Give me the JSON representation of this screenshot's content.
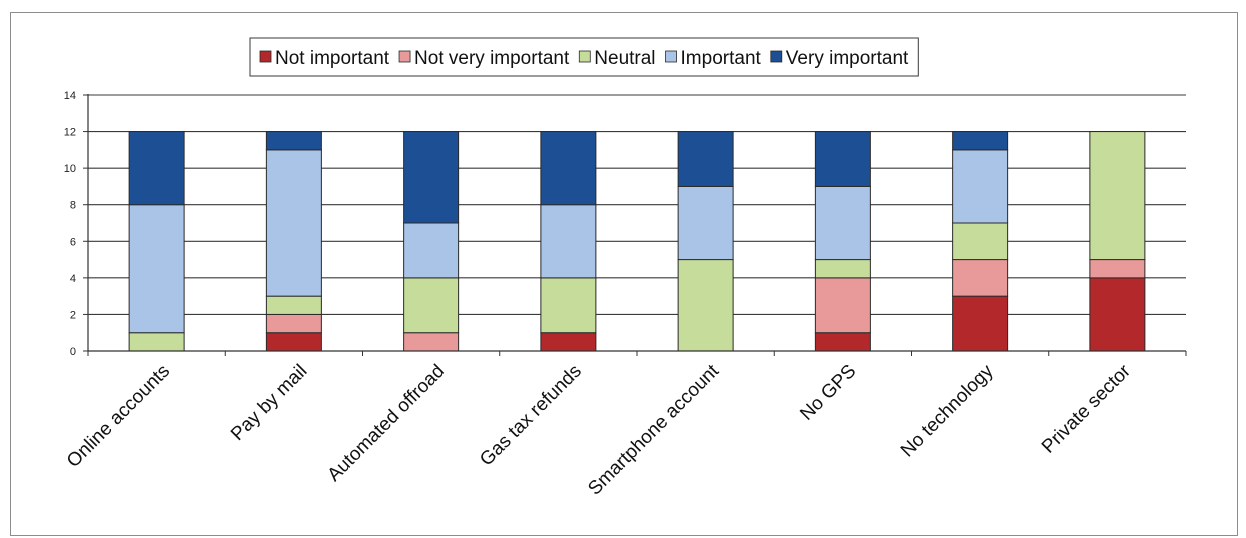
{
  "chart_data": {
    "type": "bar",
    "stacked": true,
    "title": "",
    "xlabel": "",
    "ylabel": "",
    "categories": [
      "Online accounts",
      "Pay by mail",
      "Automated offroad",
      "Gas tax refunds",
      "Smartphone account",
      "No GPS",
      "No technology",
      "Private sector"
    ],
    "series": [
      {
        "name": "Not important",
        "color": "#b3282a",
        "values": [
          0,
          1,
          0,
          1,
          0,
          1,
          3,
          4
        ]
      },
      {
        "name": "Not very important",
        "color": "#e89a9a",
        "values": [
          0,
          1,
          1,
          0,
          0,
          3,
          2,
          1
        ]
      },
      {
        "name": "Neutral",
        "color": "#c5dc9a",
        "values": [
          1,
          1,
          3,
          3,
          5,
          1,
          2,
          7
        ]
      },
      {
        "name": "Important",
        "color": "#a9c4e6",
        "values": [
          7,
          8,
          3,
          4,
          4,
          4,
          4,
          0
        ]
      },
      {
        "name": "Very important",
        "color": "#1d4f95",
        "values": [
          4,
          1,
          5,
          4,
          3,
          3,
          1,
          0
        ]
      }
    ],
    "ylim": [
      0,
      14
    ],
    "yticks": [
      0,
      2,
      4,
      6,
      8,
      10,
      12,
      14
    ],
    "grid": true,
    "legend_position": "top"
  }
}
